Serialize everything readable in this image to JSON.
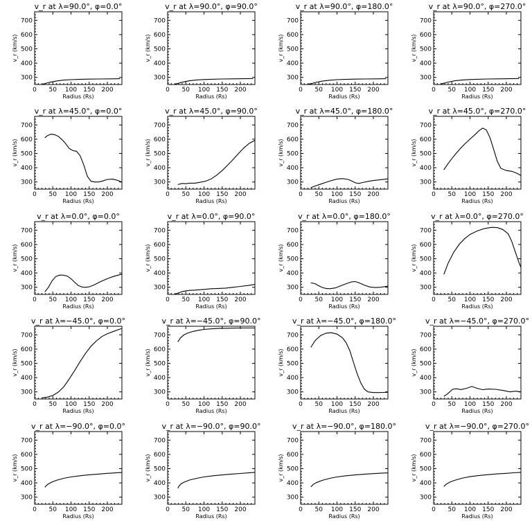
{
  "figure": {
    "xlabel": "Radius (Rs)",
    "ylabel": "v_r (km/s)"
  },
  "chart_data": [
    {
      "type": "line",
      "title": "v_r at λ=90.0°, φ=0.0°",
      "xlabel": "Radius (Rs)",
      "ylabel": "v_r (km/s)",
      "xlim": [
        0,
        240
      ],
      "ylim": [
        250,
        760
      ],
      "xticks": [
        0,
        50,
        100,
        150,
        200
      ],
      "yticks": [
        300,
        400,
        500,
        600,
        700
      ],
      "x": [
        20,
        30,
        40,
        60,
        80,
        100,
        120,
        150,
        180,
        210,
        235
      ],
      "y": [
        252,
        258,
        265,
        275,
        281,
        284,
        286,
        288,
        289,
        290,
        291
      ]
    },
    {
      "type": "line",
      "title": "v_r at λ=90.0°, φ=90.0°",
      "xlabel": "Radius (Rs)",
      "ylabel": "v_r (km/s)",
      "xlim": [
        0,
        240
      ],
      "ylim": [
        250,
        760
      ],
      "xticks": [
        0,
        50,
        100,
        150,
        200
      ],
      "yticks": [
        300,
        400,
        500,
        600,
        700
      ],
      "x": [
        20,
        30,
        40,
        60,
        80,
        100,
        120,
        150,
        180,
        210,
        235
      ],
      "y": [
        253,
        259,
        266,
        276,
        282,
        285,
        287,
        289,
        290,
        291,
        292
      ]
    },
    {
      "type": "line",
      "title": "v_r at λ=90.0°, φ=180.0°",
      "xlabel": "Radius (Rs)",
      "ylabel": "v_r (km/s)",
      "xlim": [
        0,
        240
      ],
      "ylim": [
        250,
        760
      ],
      "xticks": [
        0,
        50,
        100,
        150,
        200
      ],
      "yticks": [
        300,
        400,
        500,
        600,
        700
      ],
      "x": [
        20,
        30,
        40,
        60,
        80,
        100,
        120,
        150,
        180,
        210,
        235
      ],
      "y": [
        252,
        257,
        264,
        274,
        280,
        284,
        286,
        288,
        289,
        290,
        291
      ]
    },
    {
      "type": "line",
      "title": "v_r at λ=90.0°, φ=270.0°",
      "xlabel": "Radius (Rs)",
      "ylabel": "v_r (km/s)",
      "xlim": [
        0,
        240
      ],
      "ylim": [
        250,
        760
      ],
      "xticks": [
        0,
        50,
        100,
        150,
        200
      ],
      "yticks": [
        300,
        400,
        500,
        600,
        700
      ],
      "x": [
        20,
        30,
        40,
        60,
        80,
        100,
        120,
        150,
        180,
        210,
        235
      ],
      "y": [
        254,
        260,
        267,
        277,
        282,
        285,
        287,
        289,
        290,
        291,
        292
      ]
    },
    {
      "type": "line",
      "title": "v_r at λ=45.0°, φ=0.0°",
      "xlabel": "Radius (Rs)",
      "ylabel": "v_r (km/s)",
      "xlim": [
        0,
        240
      ],
      "ylim": [
        250,
        760
      ],
      "xticks": [
        0,
        50,
        100,
        150,
        200
      ],
      "yticks": [
        300,
        400,
        500,
        600,
        700
      ],
      "x": [
        28,
        35,
        45,
        55,
        65,
        75,
        85,
        95,
        105,
        115,
        125,
        135,
        145,
        155,
        165,
        175,
        185,
        200,
        215,
        230,
        240
      ],
      "y": [
        610,
        625,
        635,
        632,
        620,
        598,
        570,
        535,
        520,
        515,
        485,
        420,
        340,
        305,
        300,
        300,
        305,
        318,
        320,
        310,
        298
      ]
    },
    {
      "type": "line",
      "title": "v_r at λ=45.0°, φ=90.0°",
      "xlabel": "Radius (Rs)",
      "ylabel": "v_r (km/s)",
      "xlim": [
        0,
        240
      ],
      "ylim": [
        250,
        760
      ],
      "xticks": [
        0,
        50,
        100,
        150,
        200
      ],
      "yticks": [
        300,
        400,
        500,
        600,
        700
      ],
      "x": [
        28,
        40,
        50,
        60,
        75,
        90,
        105,
        120,
        135,
        150,
        165,
        180,
        195,
        210,
        225,
        240
      ],
      "y": [
        282,
        290,
        288,
        292,
        292,
        298,
        306,
        322,
        348,
        380,
        418,
        458,
        500,
        540,
        572,
        592
      ]
    },
    {
      "type": "line",
      "title": "v_r at λ=45.0°, φ=180.0°",
      "xlabel": "Radius (Rs)",
      "ylabel": "v_r (km/s)",
      "xlim": [
        0,
        240
      ],
      "ylim": [
        250,
        760
      ],
      "xticks": [
        0,
        50,
        100,
        150,
        200
      ],
      "yticks": [
        300,
        400,
        500,
        600,
        700
      ],
      "x": [
        28,
        40,
        55,
        70,
        85,
        100,
        115,
        130,
        140,
        150,
        160,
        170,
        185,
        200,
        220,
        240
      ],
      "y": [
        260,
        272,
        285,
        298,
        310,
        320,
        324,
        318,
        308,
        294,
        290,
        296,
        304,
        310,
        316,
        322
      ]
    },
    {
      "type": "line",
      "title": "v_r at λ=45.0°, φ=270.0°",
      "xlabel": "Radius (Rs)",
      "ylabel": "v_r (km/s)",
      "xlim": [
        0,
        240
      ],
      "ylim": [
        250,
        760
      ],
      "xticks": [
        0,
        50,
        100,
        150,
        200
      ],
      "yticks": [
        300,
        400,
        500,
        600,
        700
      ],
      "x": [
        28,
        40,
        55,
        70,
        85,
        100,
        115,
        125,
        135,
        145,
        155,
        165,
        175,
        185,
        200,
        215,
        230,
        240
      ],
      "y": [
        385,
        430,
        480,
        525,
        565,
        600,
        635,
        660,
        678,
        665,
        610,
        530,
        445,
        395,
        380,
        375,
        360,
        345
      ]
    },
    {
      "type": "line",
      "title": "v_r at λ=0.0°, φ=0.0°",
      "xlabel": "Radius (Rs)",
      "ylabel": "v_r (km/s)",
      "xlim": [
        0,
        240
      ],
      "ylim": [
        250,
        760
      ],
      "xticks": [
        0,
        50,
        100,
        150,
        200
      ],
      "yticks": [
        300,
        400,
        500,
        600,
        700
      ],
      "x": [
        28,
        38,
        48,
        58,
        68,
        78,
        90,
        100,
        110,
        120,
        130,
        140,
        150,
        165,
        180,
        195,
        210,
        225,
        240
      ],
      "y": [
        268,
        300,
        345,
        375,
        385,
        385,
        378,
        360,
        335,
        312,
        302,
        300,
        303,
        318,
        338,
        355,
        370,
        382,
        392
      ]
    },
    {
      "type": "line",
      "title": "v_r at λ=0.0°, φ=90.0°",
      "xlabel": "Radius (Rs)",
      "ylabel": "v_r (km/s)",
      "xlim": [
        0,
        240
      ],
      "ylim": [
        250,
        760
      ],
      "xticks": [
        0,
        50,
        100,
        150,
        200
      ],
      "yticks": [
        300,
        400,
        500,
        600,
        700
      ],
      "x": [
        20,
        30,
        40,
        50,
        60,
        75,
        90,
        105,
        120,
        140,
        160,
        180,
        200,
        220,
        240
      ],
      "y": [
        252,
        260,
        270,
        275,
        278,
        280,
        283,
        286,
        290,
        292,
        294,
        300,
        306,
        312,
        320
      ]
    },
    {
      "type": "line",
      "title": "v_r at λ=0.0°, φ=180.0°",
      "xlabel": "Radius (Rs)",
      "ylabel": "v_r (km/s)",
      "xlim": [
        0,
        240
      ],
      "ylim": [
        250,
        760
      ],
      "xticks": [
        0,
        50,
        100,
        150,
        200
      ],
      "yticks": [
        300,
        400,
        500,
        600,
        700
      ],
      "x": [
        28,
        40,
        50,
        60,
        70,
        80,
        95,
        110,
        125,
        140,
        150,
        160,
        175,
        190,
        205,
        220,
        240
      ],
      "y": [
        332,
        325,
        310,
        298,
        292,
        290,
        295,
        310,
        325,
        338,
        340,
        332,
        315,
        302,
        298,
        300,
        308
      ]
    },
    {
      "type": "line",
      "title": "v_r at λ=0.0°, φ=270.0°",
      "xlabel": "Radius (Rs)",
      "ylabel": "v_r (km/s)",
      "xlim": [
        0,
        240
      ],
      "ylim": [
        250,
        760
      ],
      "xticks": [
        0,
        50,
        100,
        150,
        200
      ],
      "yticks": [
        300,
        400,
        500,
        600,
        700
      ],
      "x": [
        28,
        40,
        55,
        70,
        85,
        100,
        120,
        140,
        160,
        175,
        190,
        205,
        215,
        225,
        235,
        240
      ],
      "y": [
        390,
        470,
        545,
        600,
        640,
        670,
        695,
        712,
        720,
        718,
        705,
        675,
        620,
        545,
        470,
        440
      ]
    },
    {
      "type": "line",
      "title": "v_r at λ=−45.0°, φ=0.0°",
      "xlabel": "Radius (Rs)",
      "ylabel": "v_r (km/s)",
      "xlim": [
        0,
        240
      ],
      "ylim": [
        250,
        760
      ],
      "xticks": [
        0,
        50,
        100,
        150,
        200
      ],
      "yticks": [
        300,
        400,
        500,
        600,
        700
      ],
      "x": [
        20,
        35,
        50,
        65,
        80,
        95,
        110,
        125,
        140,
        155,
        170,
        185,
        200,
        215,
        230,
        240
      ],
      "y": [
        258,
        263,
        275,
        298,
        335,
        390,
        450,
        512,
        570,
        620,
        658,
        688,
        708,
        722,
        736,
        745
      ]
    },
    {
      "type": "line",
      "title": "v_r at λ=−45.0°, φ=90.0°",
      "xlabel": "Radius (Rs)",
      "ylabel": "v_r (km/s)",
      "xlim": [
        0,
        240
      ],
      "ylim": [
        250,
        760
      ],
      "xticks": [
        0,
        50,
        100,
        150,
        200
      ],
      "yticks": [
        300,
        400,
        500,
        600,
        700
      ],
      "x": [
        28,
        35,
        45,
        55,
        70,
        85,
        100,
        120,
        140,
        160,
        180,
        200,
        220,
        240
      ],
      "y": [
        650,
        678,
        700,
        712,
        724,
        732,
        738,
        742,
        745,
        746,
        747,
        748,
        748,
        748
      ]
    },
    {
      "type": "line",
      "title": "v_r at λ=−45.0°, φ=180.0°",
      "xlabel": "Radius (Rs)",
      "ylabel": "v_r (km/s)",
      "xlim": [
        0,
        240
      ],
      "ylim": [
        250,
        760
      ],
      "xticks": [
        0,
        50,
        100,
        150,
        200
      ],
      "yticks": [
        300,
        400,
        500,
        600,
        700
      ],
      "x": [
        28,
        40,
        55,
        70,
        85,
        100,
        115,
        125,
        135,
        145,
        155,
        165,
        175,
        185,
        200,
        215,
        230,
        240
      ],
      "y": [
        612,
        660,
        695,
        712,
        715,
        705,
        680,
        645,
        590,
        510,
        430,
        365,
        320,
        300,
        295,
        295,
        296,
        297
      ]
    },
    {
      "type": "line",
      "title": "v_r at λ=−45.0°, φ=270.0°",
      "xlabel": "Radius (Rs)",
      "ylabel": "v_r (km/s)",
      "xlim": [
        0,
        240
      ],
      "ylim": [
        250,
        760
      ],
      "xticks": [
        0,
        50,
        100,
        150,
        200
      ],
      "yticks": [
        300,
        400,
        500,
        600,
        700
      ],
      "x": [
        28,
        40,
        52,
        62,
        75,
        90,
        105,
        120,
        135,
        150,
        170,
        190,
        210,
        225,
        240
      ],
      "y": [
        268,
        290,
        318,
        322,
        316,
        325,
        338,
        325,
        315,
        320,
        318,
        310,
        300,
        305,
        300
      ]
    },
    {
      "type": "line",
      "title": "v_r at λ=−90.0°, φ=0.0°",
      "xlabel": "Radius (Rs)",
      "ylabel": "v_r (km/s)",
      "xlim": [
        0,
        240
      ],
      "ylim": [
        250,
        760
      ],
      "xticks": [
        0,
        50,
        100,
        150,
        200
      ],
      "yticks": [
        300,
        400,
        500,
        600,
        700
      ],
      "x": [
        28,
        35,
        45,
        60,
        80,
        100,
        125,
        150,
        175,
        200,
        220,
        240
      ],
      "y": [
        370,
        388,
        403,
        418,
        432,
        442,
        450,
        457,
        462,
        467,
        470,
        473
      ]
    },
    {
      "type": "line",
      "title": "v_r at λ=−90.0°, φ=90.0°",
      "xlabel": "Radius (Rs)",
      "ylabel": "v_r (km/s)",
      "xlim": [
        0,
        240
      ],
      "ylim": [
        250,
        760
      ],
      "xticks": [
        0,
        50,
        100,
        150,
        200
      ],
      "yticks": [
        300,
        400,
        500,
        600,
        700
      ],
      "x": [
        28,
        32,
        38,
        45,
        60,
        80,
        100,
        125,
        150,
        175,
        200,
        220,
        240
      ],
      "y": [
        362,
        380,
        395,
        405,
        420,
        432,
        442,
        450,
        456,
        462,
        466,
        470,
        474
      ]
    },
    {
      "type": "line",
      "title": "v_r at λ=−90.0°, φ=180.0°",
      "xlabel": "Radius (Rs)",
      "ylabel": "v_r (km/s)",
      "xlim": [
        0,
        240
      ],
      "ylim": [
        250,
        760
      ],
      "xticks": [
        0,
        50,
        100,
        150,
        200
      ],
      "yticks": [
        300,
        400,
        500,
        600,
        700
      ],
      "x": [
        28,
        35,
        45,
        60,
        80,
        100,
        125,
        150,
        175,
        200,
        220,
        240
      ],
      "y": [
        372,
        390,
        404,
        418,
        432,
        442,
        450,
        456,
        461,
        465,
        468,
        470
      ]
    },
    {
      "type": "line",
      "title": "v_r at λ=−90.0°, φ=270.0°",
      "xlabel": "Radius (Rs)",
      "ylabel": "v_r (km/s)",
      "xlim": [
        0,
        240
      ],
      "ylim": [
        250,
        760
      ],
      "xticks": [
        0,
        50,
        100,
        150,
        200
      ],
      "yticks": [
        300,
        400,
        500,
        600,
        700
      ],
      "x": [
        28,
        35,
        45,
        60,
        80,
        100,
        125,
        150,
        175,
        200,
        220,
        240
      ],
      "y": [
        375,
        392,
        406,
        420,
        434,
        444,
        452,
        458,
        463,
        467,
        471,
        474
      ]
    }
  ]
}
